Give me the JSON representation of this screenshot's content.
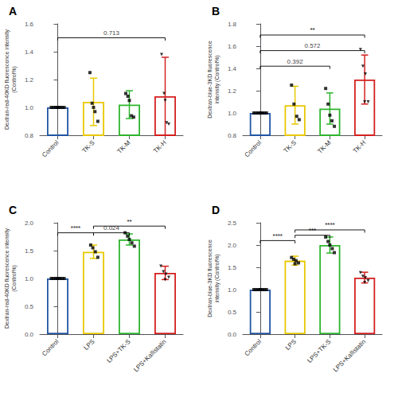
{
  "chart_data": [
    {
      "type": "bar",
      "title": "A",
      "categories": [
        "Control",
        "TK-S",
        "TK-M",
        "TK-H"
      ],
      "values": [
        1.0,
        1.04,
        1.02,
        1.08
      ],
      "errors": [
        0.005,
        0.17,
        0.1,
        0.28
      ],
      "colors": [
        "#2155a3",
        "#e8c800",
        "#2db52d",
        "#d42020"
      ],
      "ylim": [
        0.8,
        1.6
      ],
      "yticks": [
        0.8,
        {
          "value": 1.0,
          "label": "1.0"
        },
        1.2,
        1.4,
        1.6
      ],
      "ylabel": "Dextran-red-40KD fluorescence intensity\n(Control%)",
      "grid": false,
      "annotations": [
        {
          "from": "Control",
          "to": "TK-H",
          "y": 1.5,
          "text": "0.713",
          "significant": false
        }
      ],
      "points": [
        {
          "category": "Control",
          "x_offsets": [
            -0.18,
            -0.12,
            -0.06,
            0.0,
            0.06,
            0.12,
            0.18,
            0.0
          ],
          "values": [
            1.0,
            1.0,
            1.0,
            1.0,
            1.0,
            1.0,
            1.0,
            1.0
          ],
          "marker": "square",
          "color": "#000000"
        },
        {
          "category": "TK-S",
          "x_offsets": [
            -0.1,
            -0.04,
            0.04,
            0.12,
            0.0
          ],
          "values": [
            1.25,
            1.03,
            0.97,
            0.9,
            1.0
          ],
          "marker": "square",
          "color": "#000000"
        },
        {
          "category": "TK-M",
          "x_offsets": [
            -0.1,
            -0.04,
            0.0,
            0.06,
            0.12
          ],
          "values": [
            1.1,
            1.08,
            1.05,
            0.94,
            0.93
          ],
          "marker": "square",
          "color": "#000000"
        },
        {
          "category": "TK-H",
          "x_offsets": [
            -0.1,
            -0.03,
            0.04,
            0.1,
            0.0
          ],
          "values": [
            1.38,
            1.1,
            0.89,
            0.88,
            1.05
          ],
          "marker": "triangle_down",
          "color": "#000000"
        }
      ]
    },
    {
      "type": "bar",
      "title": "B",
      "categories": [
        "Control",
        "TK-S",
        "TK-M",
        "TK-H"
      ],
      "values": [
        1.0,
        1.07,
        1.04,
        1.3
      ],
      "errors": [
        0.005,
        0.17,
        0.14,
        0.22
      ],
      "colors": [
        "#2155a3",
        "#e8c800",
        "#2db52d",
        "#d42020"
      ],
      "ylim": [
        0.8,
        1.8
      ],
      "yticks": [
        0.8,
        {
          "value": 1.0,
          "label": "1.0"
        },
        1.2,
        1.4,
        1.6,
        1.8
      ],
      "ylabel": "Dextran-blue-3KD fluorescence\nintensity (Control%)",
      "grid": false,
      "annotations": [
        {
          "from": "Control",
          "to": "TK-M",
          "y": 1.42,
          "text": "0.392",
          "significant": false
        },
        {
          "from": "Control",
          "to": "TK-H",
          "y": 1.56,
          "text": "0.572",
          "significant": false
        },
        {
          "from": "Control",
          "to": "TK-H",
          "y": 1.7,
          "text": "**",
          "significant": true
        }
      ],
      "points": [
        {
          "category": "Control",
          "x_offsets": [
            -0.18,
            -0.12,
            -0.06,
            0.0,
            0.06,
            0.12,
            0.18,
            0.0
          ],
          "values": [
            1.0,
            1.0,
            1.0,
            1.0,
            1.0,
            1.0,
            1.0,
            1.0
          ],
          "marker": "square",
          "color": "#000000"
        },
        {
          "category": "TK-S",
          "x_offsets": [
            -0.1,
            -0.03,
            0.05,
            0.12
          ],
          "values": [
            1.25,
            1.08,
            0.97,
            0.94
          ],
          "marker": "square",
          "color": "#000000"
        },
        {
          "category": "TK-M",
          "x_offsets": [
            -0.12,
            -0.05,
            0.0,
            0.06,
            0.13
          ],
          "values": [
            1.22,
            1.08,
            0.98,
            0.93,
            0.88
          ],
          "marker": "square",
          "color": "#000000"
        },
        {
          "category": "TK-H",
          "x_offsets": [
            -0.12,
            -0.05,
            0.02,
            0.1,
            0.0
          ],
          "values": [
            1.57,
            1.42,
            1.35,
            1.1,
            1.1
          ],
          "marker": "triangle_down",
          "color": "#000000"
        }
      ]
    },
    {
      "type": "bar",
      "title": "C",
      "categories": [
        "Control",
        "LPS",
        "LPS+TK-S",
        "LPS+Kallistatin"
      ],
      "values": [
        1.0,
        1.48,
        1.7,
        1.1
      ],
      "errors": [
        0.005,
        0.12,
        0.1,
        0.12
      ],
      "colors": [
        "#2155a3",
        "#e8c800",
        "#2db52d",
        "#d42020"
      ],
      "ylim": [
        0.0,
        2.0
      ],
      "yticks": [
        {
          "value": 0.0,
          "label": "0.0"
        },
        0.5,
        {
          "value": 1.0,
          "label": "1.0"
        },
        1.5,
        {
          "value": 2.0,
          "label": "2.0"
        }
      ],
      "ylabel": "Dextran-red-40KD fluorescence intensity\n(Control%)",
      "grid": false,
      "annotations": [
        {
          "from": "Control",
          "to": "LPS",
          "y": 1.82,
          "text": "****",
          "significant": true
        },
        {
          "from": "LPS",
          "to": "LPS+TK-S",
          "y": 1.82,
          "text": "0.024",
          "significant": false
        },
        {
          "from": "LPS",
          "to": "LPS+Kallistatin",
          "y": 1.94,
          "text": "**",
          "significant": true
        }
      ],
      "points": [
        {
          "category": "Control",
          "x_offsets": [
            -0.18,
            -0.12,
            -0.06,
            0.0,
            0.06,
            0.12,
            0.18,
            0.0
          ],
          "values": [
            1.0,
            1.0,
            1.0,
            1.0,
            1.0,
            1.0,
            1.0,
            1.0
          ],
          "marker": "square",
          "color": "#000000"
        },
        {
          "category": "LPS",
          "x_offsets": [
            -0.08,
            -0.02,
            0.05,
            0.12
          ],
          "values": [
            1.6,
            1.55,
            1.48,
            1.38
          ],
          "marker": "square",
          "color": "#000000"
        },
        {
          "category": "LPS+TK-S",
          "x_offsets": [
            -0.12,
            -0.05,
            0.0,
            0.07,
            0.14
          ],
          "values": [
            1.82,
            1.76,
            1.7,
            1.64,
            1.58
          ],
          "marker": "square",
          "color": "#000000"
        },
        {
          "category": "LPS+Kallistatin",
          "x_offsets": [
            -0.12,
            -0.05,
            0.02,
            0.1,
            0.0
          ],
          "values": [
            1.22,
            1.12,
            1.08,
            1.02,
            0.98
          ],
          "marker": "triangle_down",
          "color": "#000000"
        }
      ]
    },
    {
      "type": "bar",
      "title": "D",
      "categories": [
        "Control",
        "LPS",
        "LPS+TK-S",
        "LPS+Kallistatin"
      ],
      "values": [
        1.0,
        1.65,
        2.0,
        1.27
      ],
      "errors": [
        0.005,
        0.1,
        0.18,
        0.12
      ],
      "colors": [
        "#2155a3",
        "#e8c800",
        "#2db52d",
        "#d42020"
      ],
      "ylim": [
        0.0,
        2.5
      ],
      "yticks": [
        {
          "value": 0.0,
          "label": "0.0"
        },
        0.5,
        {
          "value": 1.0,
          "label": "1.0"
        },
        1.5,
        {
          "value": 2.0,
          "label": "2.0"
        },
        2.5
      ],
      "ylabel": "Dextran-blue-3KD fluorescence\nintensity (Control%)",
      "grid": false,
      "annotations": [
        {
          "from": "Control",
          "to": "LPS",
          "y": 2.1,
          "text": "****",
          "significant": true
        },
        {
          "from": "LPS",
          "to": "LPS+TK-S",
          "y": 2.22,
          "text": "***",
          "significant": true
        },
        {
          "from": "LPS",
          "to": "LPS+Kallistatin",
          "y": 2.34,
          "text": "****",
          "significant": true
        }
      ],
      "points": [
        {
          "category": "Control",
          "x_offsets": [
            -0.18,
            -0.12,
            -0.06,
            0.0,
            0.06,
            0.12,
            0.18,
            0.0
          ],
          "values": [
            1.0,
            1.0,
            1.0,
            1.0,
            1.0,
            1.0,
            1.0,
            1.0
          ],
          "marker": "square",
          "color": "#000000"
        },
        {
          "category": "LPS",
          "x_offsets": [
            -0.1,
            -0.04,
            0.03,
            0.1,
            0.0
          ],
          "values": [
            1.72,
            1.68,
            1.65,
            1.6,
            1.58
          ],
          "marker": "square",
          "color": "#000000"
        },
        {
          "category": "LPS+TK-S",
          "x_offsets": [
            -0.12,
            -0.05,
            0.0,
            0.07,
            0.13
          ],
          "values": [
            2.18,
            2.08,
            2.0,
            1.92,
            1.83
          ],
          "marker": "square",
          "color": "#000000"
        },
        {
          "category": "LPS+Kallistatin",
          "x_offsets": [
            -0.12,
            -0.05,
            0.02,
            0.1,
            0.0
          ],
          "values": [
            1.38,
            1.3,
            1.27,
            1.2,
            1.16
          ],
          "marker": "triangle_down",
          "color": "#000000"
        }
      ]
    }
  ]
}
